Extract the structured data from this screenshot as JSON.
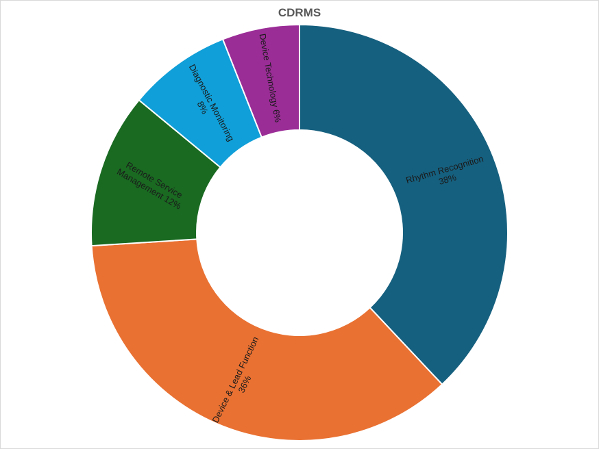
{
  "chart_data": {
    "type": "pie",
    "title": "CDRMS",
    "slices": [
      {
        "label": "Rhythm Recognition",
        "value": 38,
        "value_label": "38%",
        "color": "#16607f"
      },
      {
        "label": "Device & Lead Function",
        "value": 36,
        "value_label": "36%",
        "color": "#e97132"
      },
      {
        "label": "Remote Service Management",
        "value": 12,
        "value_label": "12%",
        "color": "#1a6a22"
      },
      {
        "label": "Diagnostic Monitoring",
        "value": 8,
        "value_label": "8%",
        "color": "#109fd8"
      },
      {
        "label": "Device Technology",
        "value": 6,
        "value_label": "6%",
        "color": "#9b2d97"
      }
    ]
  }
}
